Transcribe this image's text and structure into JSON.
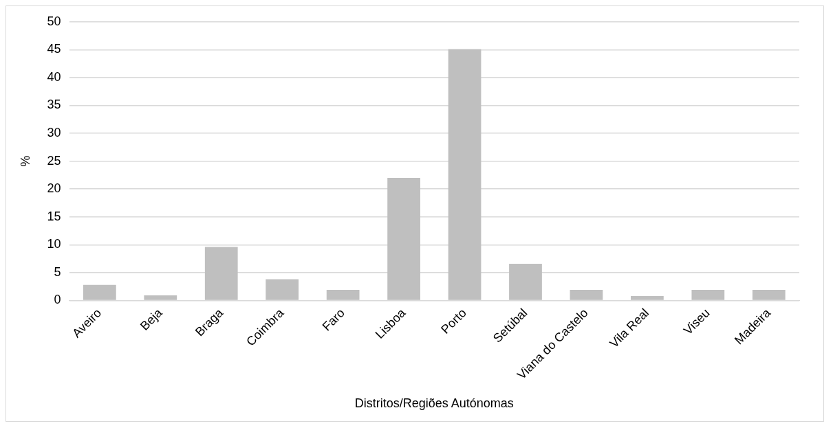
{
  "chart_data": {
    "type": "bar",
    "xlabel": "Distritos/Regiões Autónomas",
    "ylabel": "%",
    "categories": [
      "Aveiro",
      "Beja",
      "Braga",
      "Coimbra",
      "Faro",
      "Lisboa",
      "Porto",
      "Setúbal",
      "Viana do Castelo",
      "Vila Real",
      "Viseu",
      "Madeira"
    ],
    "values": [
      2.8,
      0.9,
      9.6,
      3.8,
      1.9,
      22.0,
      45.1,
      6.6,
      1.9,
      0.8,
      1.9,
      1.9
    ],
    "color": "#bfbfbf",
    "ylim": [
      0,
      50
    ],
    "yticks": [
      0,
      5,
      10,
      15,
      20,
      25,
      30,
      35,
      40,
      45,
      50
    ],
    "grid": "y",
    "legend": false
  }
}
